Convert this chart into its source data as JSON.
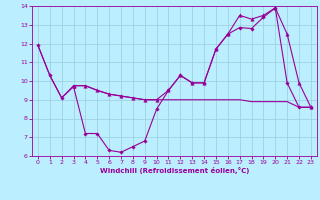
{
  "xlabel": "Windchill (Refroidissement éolien,°C)",
  "bg_color": "#bbeeff",
  "line_color": "#990099",
  "grid_color": "#99ccdd",
  "ylim": [
    6,
    14
  ],
  "xlim": [
    -0.5,
    23.5
  ],
  "yticks": [
    6,
    7,
    8,
    9,
    10,
    11,
    12,
    13,
    14
  ],
  "xticks": [
    0,
    1,
    2,
    3,
    4,
    5,
    6,
    7,
    8,
    9,
    10,
    11,
    12,
    13,
    14,
    15,
    16,
    17,
    18,
    19,
    20,
    21,
    22,
    23
  ],
  "line1_x": [
    0,
    1,
    2,
    3,
    4,
    5,
    6,
    7,
    8,
    9,
    10,
    11,
    12,
    13,
    14,
    15,
    16,
    17,
    18,
    19,
    20,
    21,
    22,
    23
  ],
  "line1_y": [
    11.9,
    10.3,
    9.1,
    9.7,
    7.2,
    7.2,
    6.3,
    6.2,
    6.5,
    6.8,
    8.5,
    9.5,
    10.3,
    9.9,
    9.9,
    11.7,
    12.5,
    12.85,
    12.8,
    13.4,
    13.9,
    9.9,
    8.6,
    8.6
  ],
  "line2_x": [
    0,
    1,
    2,
    3,
    4,
    5,
    6,
    7,
    8,
    9,
    10,
    11,
    12,
    13,
    14,
    15,
    16,
    17,
    18,
    19,
    20,
    21,
    22,
    23
  ],
  "line2_y": [
    11.9,
    10.3,
    9.1,
    9.75,
    9.75,
    9.5,
    9.3,
    9.2,
    9.1,
    9.0,
    9.0,
    9.0,
    9.0,
    9.0,
    9.0,
    9.0,
    9.0,
    9.0,
    8.9,
    8.9,
    8.9,
    8.9,
    8.6,
    8.6
  ],
  "line3_x": [
    3,
    4,
    5,
    6,
    7,
    8,
    9,
    10,
    11,
    12,
    13,
    14,
    15,
    16,
    17,
    18,
    19,
    20,
    21,
    22,
    23
  ],
  "line3_y": [
    9.75,
    9.75,
    9.5,
    9.3,
    9.2,
    9.1,
    9.0,
    9.0,
    9.5,
    10.3,
    9.9,
    9.9,
    11.7,
    12.5,
    13.5,
    13.3,
    13.5,
    13.9,
    12.5,
    9.9,
    8.6
  ]
}
